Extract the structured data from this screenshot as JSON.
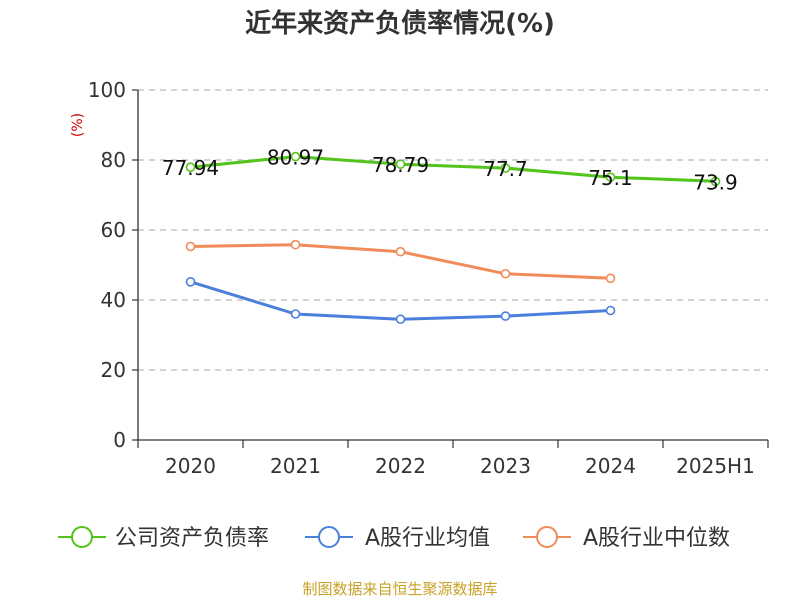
{
  "chart_data": {
    "type": "line",
    "title": "近年来资产负债率情况(%)",
    "ylabel": "(%)",
    "xlabel": "",
    "categories": [
      "2020",
      "2021",
      "2022",
      "2023",
      "2024",
      "2025H1"
    ],
    "ylim": [
      0,
      100
    ],
    "yticks": [
      0,
      20,
      40,
      60,
      80,
      100
    ],
    "grid": true,
    "legend_position": "bottom",
    "series": [
      {
        "name": "公司资产负债率",
        "color": "#52c41a",
        "values": [
          77.94,
          80.97,
          78.79,
          77.7,
          75.1,
          73.9
        ],
        "labels": [
          "77.94",
          "80.97",
          "78.79",
          "77.7",
          "75.1",
          "73.9"
        ]
      },
      {
        "name": "A股行业均值",
        "color": "#4a7fdc",
        "values": [
          45.2,
          36.0,
          34.5,
          35.4,
          37.0,
          null
        ]
      },
      {
        "name": "A股行业中位数",
        "color": "#f08c5a",
        "values": [
          55.3,
          55.8,
          53.8,
          47.5,
          46.2,
          null
        ]
      }
    ]
  },
  "source": "制图数据来自恒生聚源数据库"
}
